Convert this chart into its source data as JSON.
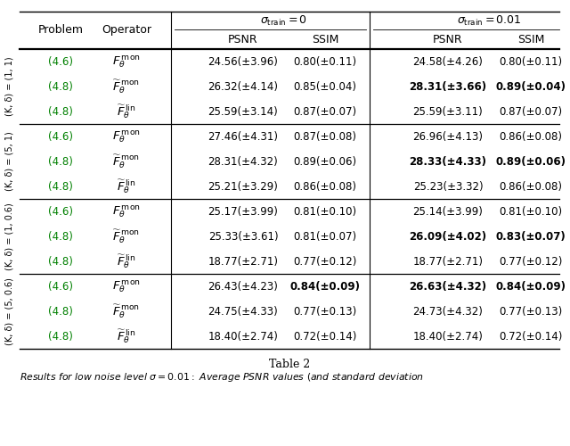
{
  "title": "Table 2",
  "subtitle": "Results for low noise level σ = 0.01: Average PSNR values (and standard deviation",
  "groups": [
    {
      "label": "(Κ, δ) = (1, 1)",
      "rows": [
        {
          "prob": "(4.6)",
          "op_type": "F_mon",
          "op_tilde": false,
          "s0_psnr": "24.56(±3.96)",
          "s0_ssim": "0.80(±0.11)",
          "s1_psnr": "24.58(±4.26)",
          "s1_ssim": "0.80(±0.11)",
          "bold_s0_psnr": false,
          "bold_s0_ssim": false,
          "bold_s1_psnr": false,
          "bold_s1_ssim": false
        },
        {
          "prob": "(4.8)",
          "op_type": "F_mon",
          "op_tilde": true,
          "s0_psnr": "26.32(±4.14)",
          "s0_ssim": "0.85(±0.04)",
          "s1_psnr": "28.31(±3.66)",
          "s1_ssim": "0.89(±0.04)",
          "bold_s0_psnr": false,
          "bold_s0_ssim": false,
          "bold_s1_psnr": true,
          "bold_s1_ssim": true
        },
        {
          "prob": "(4.8)",
          "op_type": "F_lin",
          "op_tilde": true,
          "s0_psnr": "25.59(±3.14)",
          "s0_ssim": "0.87(±0.07)",
          "s1_psnr": "25.59(±3.11)",
          "s1_ssim": "0.87(±0.07)",
          "bold_s0_psnr": false,
          "bold_s0_ssim": false,
          "bold_s1_psnr": false,
          "bold_s1_ssim": false
        }
      ]
    },
    {
      "label": "(Κ, δ) = (5, 1)",
      "rows": [
        {
          "prob": "(4.6)",
          "op_type": "F_mon",
          "op_tilde": false,
          "s0_psnr": "27.46(±4.31)",
          "s0_ssim": "0.87(±0.08)",
          "s1_psnr": "26.96(±4.13)",
          "s1_ssim": "0.86(±0.08)",
          "bold_s0_psnr": false,
          "bold_s0_ssim": false,
          "bold_s1_psnr": false,
          "bold_s1_ssim": false
        },
        {
          "prob": "(4.8)",
          "op_type": "F_mon",
          "op_tilde": true,
          "s0_psnr": "28.31(±4.32)",
          "s0_ssim": "0.89(±0.06)",
          "s1_psnr": "28.33(±4.33)",
          "s1_ssim": "0.89(±0.06)",
          "bold_s0_psnr": false,
          "bold_s0_ssim": false,
          "bold_s1_psnr": true,
          "bold_s1_ssim": true
        },
        {
          "prob": "(4.8)",
          "op_type": "F_lin",
          "op_tilde": true,
          "s0_psnr": "25.21(±3.29)",
          "s0_ssim": "0.86(±0.08)",
          "s1_psnr": "25.23(±3.32)",
          "s1_ssim": "0.86(±0.08)",
          "bold_s0_psnr": false,
          "bold_s0_ssim": false,
          "bold_s1_psnr": false,
          "bold_s1_ssim": false
        }
      ]
    },
    {
      "label": "(Κ, δ) = (1, 0.6)",
      "rows": [
        {
          "prob": "(4.6)",
          "op_type": "F_mon",
          "op_tilde": false,
          "s0_psnr": "25.17(±3.99)",
          "s0_ssim": "0.81(±0.10)",
          "s1_psnr": "25.14(±3.99)",
          "s1_ssim": "0.81(±0.10)",
          "bold_s0_psnr": false,
          "bold_s0_ssim": false,
          "bold_s1_psnr": false,
          "bold_s1_ssim": false
        },
        {
          "prob": "(4.8)",
          "op_type": "F_mon",
          "op_tilde": true,
          "s0_psnr": "25.33(±3.61)",
          "s0_ssim": "0.81(±0.07)",
          "s1_psnr": "26.09(±4.02)",
          "s1_ssim": "0.83(±0.07)",
          "bold_s0_psnr": false,
          "bold_s0_ssim": false,
          "bold_s1_psnr": true,
          "bold_s1_ssim": true
        },
        {
          "prob": "(4.8)",
          "op_type": "F_lin",
          "op_tilde": true,
          "s0_psnr": "18.77(±2.71)",
          "s0_ssim": "0.77(±0.12)",
          "s1_psnr": "18.77(±2.71)",
          "s1_ssim": "0.77(±0.12)",
          "bold_s0_psnr": false,
          "bold_s0_ssim": false,
          "bold_s1_psnr": false,
          "bold_s1_ssim": false
        }
      ]
    },
    {
      "label": "(Κ, δ) = (5, 0.6)",
      "rows": [
        {
          "prob": "(4.6)",
          "op_type": "F_mon",
          "op_tilde": false,
          "s0_psnr": "26.43(±4.23)",
          "s0_ssim": "0.84(±0.09)",
          "s1_psnr": "26.63(±4.32)",
          "s1_ssim": "0.84(±0.09)",
          "bold_s0_psnr": false,
          "bold_s0_ssim": true,
          "bold_s1_psnr": true,
          "bold_s1_ssim": true
        },
        {
          "prob": "(4.8)",
          "op_type": "F_mon",
          "op_tilde": true,
          "s0_psnr": "24.75(±4.33)",
          "s0_ssim": "0.77(±0.13)",
          "s1_psnr": "24.73(±4.32)",
          "s1_ssim": "0.77(±0.13)",
          "bold_s0_psnr": false,
          "bold_s0_ssim": false,
          "bold_s1_psnr": false,
          "bold_s1_ssim": false
        },
        {
          "prob": "(4.8)",
          "op_type": "F_lin",
          "op_tilde": true,
          "s0_psnr": "18.40(±2.74)",
          "s0_ssim": "0.72(±0.14)",
          "s1_psnr": "18.40(±2.74)",
          "s1_ssim": "0.72(±0.14)",
          "bold_s0_psnr": false,
          "bold_s0_ssim": false,
          "bold_s1_psnr": false,
          "bold_s1_ssim": false
        }
      ]
    }
  ],
  "link_color": "#008000",
  "text_color": "#000000",
  "bg_color": "#ffffff",
  "line_color": "#000000"
}
